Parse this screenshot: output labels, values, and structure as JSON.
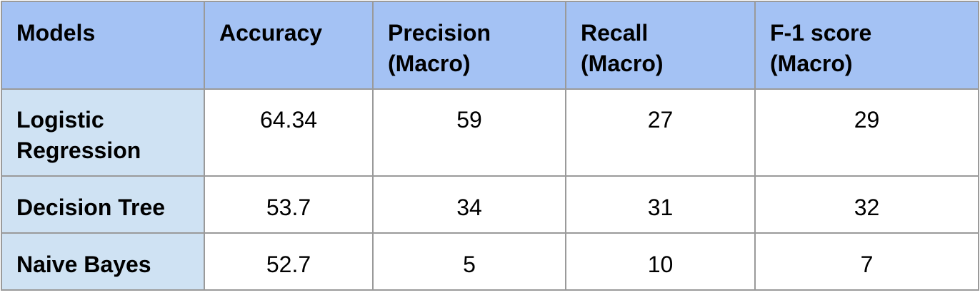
{
  "table": {
    "headers": [
      [
        "Models"
      ],
      [
        "Accuracy"
      ],
      [
        "Precision",
        "(Macro)"
      ],
      [
        "Recall",
        "(Macro)"
      ],
      [
        "F-1 score",
        "(Macro)"
      ]
    ],
    "rows": [
      {
        "model": [
          "Logistic",
          "Regression"
        ],
        "accuracy": "64.34",
        "precision": "59",
        "recall": "27",
        "f1": "29"
      },
      {
        "model": [
          "Decision Tree"
        ],
        "accuracy": "53.7",
        "precision": "34",
        "recall": "31",
        "f1": "32"
      },
      {
        "model": [
          "Naive Bayes"
        ],
        "accuracy": "52.7",
        "precision": "5",
        "recall": "10",
        "f1": "7"
      }
    ]
  },
  "colors": {
    "header_bg": "#a4c2f4",
    "model_col_bg": "#cfe2f3",
    "border": "#9a9a9a"
  }
}
